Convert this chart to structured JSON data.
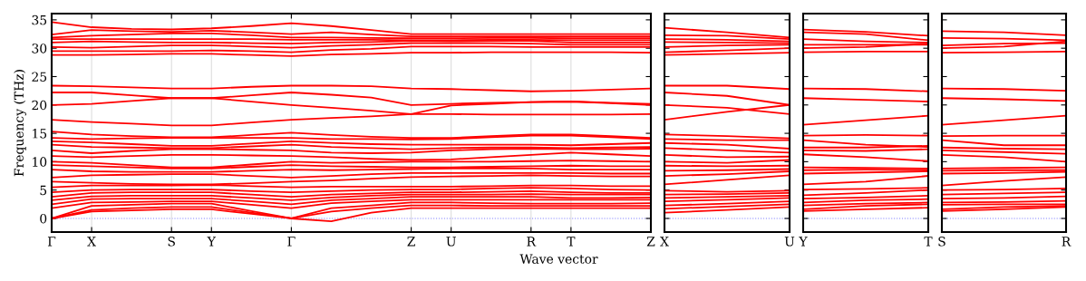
{
  "chart_data": [
    {
      "type": "line",
      "ylabel": "Frequency (THz)",
      "xlabel": "Wave vector",
      "color": "#ff0000",
      "marker": "none",
      "line_style": "solid",
      "grid": "x",
      "categories": [
        "Γ",
        "X",
        null,
        "S",
        "Y",
        null,
        "Γ",
        null,
        null,
        "Z",
        "U",
        null,
        "R",
        "T",
        null,
        "Z"
      ],
      "ylim": [
        -2.4,
        36.1
      ],
      "yticks": [
        0,
        5,
        10,
        15,
        20,
        25,
        30,
        35
      ],
      "ref_lines": [
        {
          "axis": "y",
          "value": 0,
          "color": "#8080ff",
          "line_style": "dotted"
        }
      ],
      "series": [
        {
          "values": [
            0,
            1.2,
            1.4,
            1.6,
            1.6,
            0.8,
            0,
            -0.5,
            1.0,
            1.8,
            1.8,
            1.8,
            1.8,
            1.8,
            1.8,
            1.8
          ]
        },
        {
          "values": [
            0,
            1.5,
            1.8,
            2.0,
            2.0,
            1.0,
            0,
            1.2,
            1.8,
            2.3,
            2.3,
            2.2,
            2.2,
            2.2,
            2.2,
            2.2
          ]
        },
        {
          "values": [
            0,
            2.2,
            2.4,
            2.6,
            2.6,
            1.3,
            0,
            1.8,
            2.3,
            2.8,
            2.8,
            2.7,
            2.6,
            2.6,
            2.6,
            2.7
          ]
        },
        {
          "values": [
            1.8,
            2.8,
            2.9,
            3.0,
            3.0,
            2.4,
            1.8,
            2.7,
            3.0,
            3.3,
            3.3,
            3.3,
            3.3,
            3.3,
            3.3,
            3.3
          ]
        },
        {
          "values": [
            2.5,
            3.4,
            3.5,
            3.5,
            3.5,
            3.0,
            2.5,
            3.2,
            3.5,
            3.8,
            3.8,
            3.8,
            3.8,
            3.6,
            3.6,
            3.7
          ]
        },
        {
          "values": [
            3.2,
            3.9,
            4.0,
            4.0,
            4.0,
            3.6,
            3.2,
            3.7,
            4.0,
            4.2,
            4.2,
            4.2,
            4.3,
            4.2,
            4.2,
            4.2
          ]
        },
        {
          "values": [
            3.8,
            4.5,
            4.6,
            4.6,
            4.6,
            4.2,
            3.8,
            4.2,
            4.4,
            4.6,
            4.6,
            4.7,
            4.8,
            4.6,
            4.5,
            4.5
          ]
        },
        {
          "values": [
            4.6,
            5.0,
            5.1,
            5.1,
            5.1,
            4.8,
            4.6,
            4.8,
            5.0,
            5.1,
            5.1,
            5.3,
            5.4,
            5.3,
            5.1,
            5.0
          ]
        },
        {
          "values": [
            5.5,
            5.8,
            5.8,
            5.8,
            5.9,
            5.7,
            5.5,
            5.6,
            5.6,
            5.6,
            5.6,
            5.7,
            5.8,
            5.8,
            5.7,
            5.7
          ]
        },
        {
          "values": [
            6.5,
            6.3,
            6.1,
            6.0,
            6.0,
            6.2,
            6.5,
            6.7,
            7.0,
            7.3,
            7.4,
            7.5,
            7.6,
            7.5,
            7.4,
            7.4
          ]
        },
        {
          "values": [
            7.2,
            7.6,
            7.7,
            7.8,
            7.8,
            7.5,
            7.2,
            7.5,
            7.8,
            8.0,
            8.0,
            8.0,
            8.0,
            8.0,
            7.9,
            7.9
          ]
        },
        {
          "values": [
            8.6,
            8.3,
            8.2,
            8.2,
            8.2,
            8.4,
            8.6,
            8.5,
            8.6,
            8.7,
            8.8,
            8.8,
            8.8,
            8.6,
            8.6,
            8.6
          ]
        },
        {
          "values": [
            9.4,
            9.2,
            9.0,
            8.8,
            8.8,
            9.1,
            9.4,
            9.2,
            9.1,
            9.0,
            9.0,
            9.1,
            9.2,
            9.3,
            9.2,
            9.2
          ]
        },
        {
          "values": [
            10.0,
            9.8,
            9.4,
            9.0,
            9.0,
            9.5,
            10.0,
            9.8,
            9.9,
            10.0,
            10.0,
            10.0,
            10.1,
            10.2,
            10.1,
            10.0
          ]
        },
        {
          "values": [
            11.0,
            10.8,
            11.0,
            11.2,
            11.2,
            11.1,
            11.0,
            10.8,
            10.5,
            10.3,
            10.4,
            10.8,
            11.2,
            11.6,
            11.3,
            11.0
          ]
        },
        {
          "values": [
            12.0,
            11.5,
            11.9,
            12.2,
            12.2,
            12.1,
            12.0,
            11.6,
            11.5,
            11.6,
            12.0,
            12.2,
            12.3,
            12.2,
            12.2,
            12.3
          ]
        },
        {
          "values": [
            13.0,
            12.6,
            12.5,
            12.4,
            12.4,
            12.7,
            13.0,
            12.6,
            12.4,
            12.2,
            12.4,
            12.5,
            12.5,
            12.4,
            12.5,
            12.6
          ]
        },
        {
          "values": [
            13.6,
            13.4,
            13.1,
            12.8,
            12.8,
            13.2,
            13.6,
            13.3,
            13.1,
            13.0,
            13.0,
            13.0,
            13.0,
            12.9,
            13.1,
            13.3
          ]
        },
        {
          "values": [
            14.2,
            14.0,
            14.1,
            14.2,
            14.2,
            14.2,
            14.2,
            14.0,
            14.0,
            13.9,
            14.0,
            14.3,
            14.6,
            14.6,
            14.3,
            14.0
          ]
        },
        {
          "values": [
            15.3,
            14.8,
            14.5,
            14.3,
            14.3,
            14.7,
            15.1,
            14.7,
            14.4,
            14.2,
            14.2,
            14.5,
            14.8,
            14.8,
            14.5,
            14.2
          ]
        },
        {
          "values": [
            17.4,
            17.0,
            16.7,
            16.4,
            16.4,
            16.9,
            17.4,
            17.7,
            18.0,
            18.4,
            18.4,
            18.3,
            18.3,
            18.3,
            18.3,
            18.4
          ]
        },
        {
          "values": [
            20.0,
            20.2,
            20.7,
            21.2,
            21.2,
            20.6,
            20.0,
            19.5,
            19.0,
            18.4,
            19.9,
            20.2,
            20.5,
            20.6,
            20.3,
            20.0
          ]
        },
        {
          "values": [
            22.2,
            22.2,
            21.7,
            21.2,
            21.2,
            21.7,
            22.2,
            21.8,
            21.3,
            20.0,
            20.2,
            20.4,
            20.5,
            20.6,
            20.4,
            20.2
          ]
        },
        {
          "values": [
            23.4,
            23.3,
            23.1,
            22.9,
            22.9,
            23.2,
            23.4,
            23.4,
            23.3,
            22.9,
            22.8,
            22.6,
            22.4,
            22.5,
            22.7,
            22.9
          ]
        },
        {
          "values": [
            28.8,
            28.8,
            28.9,
            29.0,
            29.0,
            28.8,
            28.6,
            28.9,
            29.0,
            29.2,
            29.2,
            29.3,
            29.3,
            29.3,
            29.3,
            29.2
          ]
        },
        {
          "values": [
            29.5,
            29.5,
            29.5,
            29.5,
            29.6,
            29.5,
            29.3,
            29.7,
            29.9,
            30.3,
            30.3,
            30.3,
            30.2,
            30.2,
            30.2,
            30.2
          ]
        },
        {
          "values": [
            30.2,
            30.1,
            30.3,
            30.5,
            30.5,
            30.3,
            30.1,
            30.4,
            30.6,
            30.9,
            30.9,
            30.9,
            30.8,
            30.6,
            30.6,
            30.6
          ]
        },
        {
          "values": [
            31.0,
            31.2,
            31.1,
            31.0,
            31.0,
            30.9,
            30.8,
            31.0,
            31.1,
            31.3,
            31.2,
            31.3,
            31.3,
            31.0,
            31.0,
            31.0
          ]
        },
        {
          "values": [
            31.6,
            31.6,
            31.6,
            31.6,
            31.6,
            31.6,
            31.5,
            31.5,
            31.5,
            31.4,
            31.4,
            31.5,
            31.5,
            31.4,
            31.4,
            31.4
          ]
        },
        {
          "values": [
            31.9,
            32.2,
            32.4,
            32.6,
            32.6,
            32.3,
            31.9,
            31.9,
            31.8,
            31.75,
            31.75,
            31.8,
            31.8,
            31.75,
            31.75,
            31.75
          ]
        },
        {
          "values": [
            32.4,
            33.2,
            33.0,
            32.9,
            33.1,
            32.8,
            32.5,
            32.8,
            32.4,
            32.1,
            32.1,
            32.1,
            32.1,
            32.1,
            32.1,
            32.1
          ]
        },
        {
          "values": [
            34.6,
            33.7,
            33.4,
            33.3,
            33.5,
            33.9,
            34.4,
            33.9,
            33.2,
            32.5,
            32.5,
            32.5,
            32.5,
            32.5,
            32.5,
            32.5
          ]
        }
      ]
    },
    {
      "type": "line",
      "color": "#ff0000",
      "marker": "none",
      "line_style": "solid",
      "tick_labels": "x",
      "categories": [
        "X",
        null,
        "U"
      ],
      "ylim": [
        -2.4,
        36.1
      ],
      "yticks": [
        0,
        5,
        10,
        15,
        20,
        25,
        30,
        35
      ],
      "ref_lines": [
        {
          "axis": "y",
          "value": 0,
          "color": "#8080ff",
          "line_style": "dotted"
        }
      ],
      "series": [
        {
          "values": [
            33.6,
            32.8,
            31.9
          ]
        },
        {
          "values": [
            32.3,
            32.2,
            31.6
          ]
        },
        {
          "values": [
            31.6,
            31.5,
            31.2
          ]
        },
        {
          "values": [
            31.1,
            31.0,
            30.9
          ]
        },
        {
          "values": [
            30.2,
            30.5,
            30.6
          ]
        },
        {
          "values": [
            29.3,
            29.6,
            30.0
          ]
        },
        {
          "values": [
            28.8,
            29.0,
            29.2
          ]
        },
        {
          "values": [
            23.4,
            23.4,
            22.8
          ]
        },
        {
          "values": [
            22.2,
            21.6,
            20.0
          ]
        },
        {
          "values": [
            20.0,
            19.5,
            18.4
          ]
        },
        {
          "values": [
            17.4,
            18.8,
            20.0
          ]
        },
        {
          "values": [
            14.8,
            14.5,
            14.1
          ]
        },
        {
          "values": [
            14.0,
            13.8,
            13.8
          ]
        },
        {
          "values": [
            13.3,
            13.0,
            12.3
          ]
        },
        {
          "values": [
            12.4,
            12.0,
            11.6
          ]
        },
        {
          "values": [
            11.2,
            10.8,
            10.9
          ]
        },
        {
          "values": [
            10.0,
            9.8,
            10.3
          ]
        },
        {
          "values": [
            9.3,
            9.2,
            9.3
          ]
        },
        {
          "values": [
            8.4,
            8.5,
            8.7
          ]
        },
        {
          "values": [
            7.5,
            7.8,
            8.3
          ]
        },
        {
          "values": [
            6.0,
            6.8,
            7.6
          ]
        },
        {
          "values": [
            4.9,
            4.7,
            4.9
          ]
        },
        {
          "values": [
            4.2,
            4.3,
            4.5
          ]
        },
        {
          "values": [
            3.6,
            3.8,
            4.0
          ]
        },
        {
          "values": [
            3.0,
            3.3,
            3.6
          ]
        },
        {
          "values": [
            2.3,
            2.6,
            3.0
          ]
        },
        {
          "values": [
            1.7,
            2.1,
            2.5
          ]
        },
        {
          "values": [
            1.0,
            1.5,
            2.0
          ]
        }
      ]
    },
    {
      "type": "line",
      "color": "#ff0000",
      "marker": "none",
      "line_style": "solid",
      "tick_labels": "x",
      "categories": [
        "Y",
        null,
        "T"
      ],
      "ylim": [
        -2.4,
        36.1
      ],
      "yticks": [
        0,
        5,
        10,
        15,
        20,
        25,
        30,
        35
      ],
      "ref_lines": [
        {
          "axis": "y",
          "value": 0,
          "color": "#8080ff",
          "line_style": "dotted"
        }
      ],
      "series": [
        {
          "values": [
            33.3,
            32.9,
            32.2
          ]
        },
        {
          "values": [
            32.8,
            32.5,
            31.4
          ]
        },
        {
          "values": [
            31.6,
            31.2,
            31.0
          ]
        },
        {
          "values": [
            30.6,
            30.6,
            30.6
          ]
        },
        {
          "values": [
            30.0,
            30.2,
            30.8
          ]
        },
        {
          "values": [
            29.3,
            29.4,
            29.4
          ]
        },
        {
          "values": [
            22.9,
            22.8,
            22.4
          ]
        },
        {
          "values": [
            21.2,
            20.9,
            20.6
          ]
        },
        {
          "values": [
            16.5,
            17.3,
            18.1
          ]
        },
        {
          "values": [
            14.6,
            14.7,
            14.6
          ]
        },
        {
          "values": [
            13.8,
            13.0,
            12.6
          ]
        },
        {
          "values": [
            12.5,
            12.5,
            12.8
          ]
        },
        {
          "values": [
            12.0,
            11.9,
            12.2
          ]
        },
        {
          "values": [
            11.3,
            10.8,
            10.1
          ]
        },
        {
          "values": [
            9.0,
            8.9,
            8.8
          ]
        },
        {
          "values": [
            8.5,
            8.6,
            8.5
          ]
        },
        {
          "values": [
            7.9,
            8.1,
            8.3
          ]
        },
        {
          "values": [
            6.0,
            6.5,
            7.5
          ]
        },
        {
          "values": [
            5.1,
            5.2,
            5.4
          ]
        },
        {
          "values": [
            4.1,
            4.5,
            5.0
          ]
        },
        {
          "values": [
            3.5,
            3.7,
            4.0
          ]
        },
        {
          "values": [
            2.8,
            3.2,
            3.4
          ]
        },
        {
          "values": [
            2.3,
            2.6,
            2.8
          ]
        },
        {
          "values": [
            1.6,
            2.2,
            2.5
          ]
        },
        {
          "values": [
            1.3,
            1.6,
            1.9
          ]
        }
      ]
    },
    {
      "type": "line",
      "color": "#ff0000",
      "marker": "none",
      "line_style": "solid",
      "tick_labels": "x",
      "categories": [
        "S",
        null,
        "R"
      ],
      "ylim": [
        -2.4,
        36.1
      ],
      "yticks": [
        0,
        5,
        10,
        15,
        20,
        25,
        30,
        35
      ],
      "ref_lines": [
        {
          "axis": "y",
          "value": 0,
          "color": "#8080ff",
          "line_style": "dotted"
        }
      ],
      "series": [
        {
          "values": [
            33.0,
            32.8,
            32.3
          ]
        },
        {
          "values": [
            31.8,
            31.7,
            31.4
          ]
        },
        {
          "values": [
            30.5,
            30.8,
            30.9
          ]
        },
        {
          "values": [
            30.0,
            30.3,
            31.2
          ]
        },
        {
          "values": [
            29.2,
            29.3,
            29.4
          ]
        },
        {
          "values": [
            22.9,
            22.8,
            22.5
          ]
        },
        {
          "values": [
            21.2,
            21.0,
            20.7
          ]
        },
        {
          "values": [
            16.5,
            17.3,
            18.1
          ]
        },
        {
          "values": [
            14.5,
            14.6,
            14.6
          ]
        },
        {
          "values": [
            13.8,
            12.9,
            12.9
          ]
        },
        {
          "values": [
            12.5,
            12.3,
            12.2
          ]
        },
        {
          "values": [
            12.0,
            11.7,
            11.4
          ]
        },
        {
          "values": [
            11.2,
            10.8,
            10.0
          ]
        },
        {
          "values": [
            8.8,
            8.9,
            9.0
          ]
        },
        {
          "values": [
            8.4,
            8.5,
            8.5
          ]
        },
        {
          "values": [
            7.9,
            8.0,
            8.2
          ]
        },
        {
          "values": [
            5.8,
            6.6,
            7.3
          ]
        },
        {
          "values": [
            5.0,
            5.1,
            5.3
          ]
        },
        {
          "values": [
            4.2,
            4.4,
            4.6
          ]
        },
        {
          "values": [
            3.5,
            3.6,
            3.9
          ]
        },
        {
          "values": [
            2.8,
            2.9,
            3.1
          ]
        },
        {
          "values": [
            2.4,
            2.5,
            2.5
          ]
        },
        {
          "values": [
            1.6,
            2.0,
            2.2
          ]
        },
        {
          "values": [
            1.3,
            1.6,
            2.0
          ]
        }
      ]
    }
  ]
}
